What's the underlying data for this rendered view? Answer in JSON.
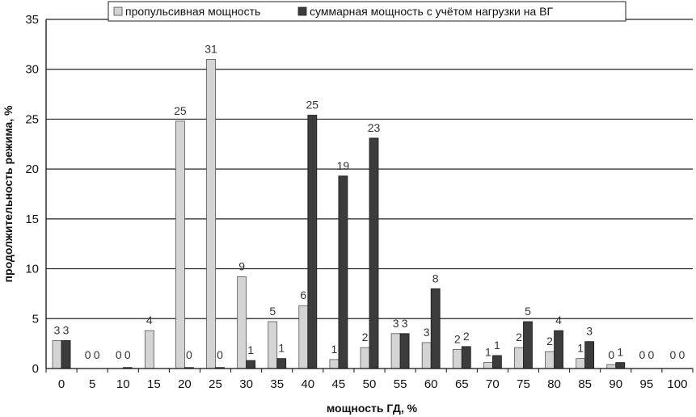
{
  "chart_data": {
    "type": "bar",
    "xlabel": "мощность ГД, %",
    "ylabel": "продолжительность режима, %",
    "ylim": [
      0,
      35
    ],
    "yticks": [
      0,
      5,
      10,
      15,
      20,
      25,
      30,
      35
    ],
    "grid": true,
    "legend_position": "top-center",
    "categories": [
      "0",
      "5",
      "10",
      "15",
      "20",
      "25",
      "30",
      "35",
      "40",
      "45",
      "50",
      "55",
      "60",
      "65",
      "70",
      "75",
      "80",
      "85",
      "90",
      "95",
      "100"
    ],
    "series": [
      {
        "name": "пропульсивная мощность",
        "color": "#d4d4d4",
        "values": [
          2.8,
          0,
          0,
          3.8,
          24.8,
          31,
          9.2,
          4.7,
          6.3,
          0.9,
          2.1,
          3.5,
          2.6,
          1.9,
          0.6,
          2.1,
          1.7,
          1.0,
          0.4,
          0,
          0
        ],
        "labels": [
          "3",
          "0",
          "0",
          "4",
          "25",
          "31",
          "9",
          "5",
          "6",
          "1",
          "2",
          "3",
          "3",
          "2",
          "1",
          "2",
          "2",
          "1",
          "0",
          "0",
          "0"
        ]
      },
      {
        "name": "суммарная мощность с учётом нагрузки на ВГ",
        "color": "#3c3c3c",
        "values": [
          2.8,
          0,
          0.1,
          0,
          0.1,
          0.1,
          0.8,
          1.0,
          25.4,
          19.3,
          23.1,
          3.5,
          8.0,
          2.2,
          1.3,
          4.7,
          3.8,
          2.7,
          0.6,
          0,
          0
        ],
        "labels": [
          "3",
          "0",
          "0",
          "",
          "0",
          "0",
          "1",
          "1",
          "25",
          "19",
          "23",
          "3",
          "8",
          "2",
          "1",
          "5",
          "4",
          "3",
          "1",
          "0",
          "0"
        ]
      }
    ]
  }
}
